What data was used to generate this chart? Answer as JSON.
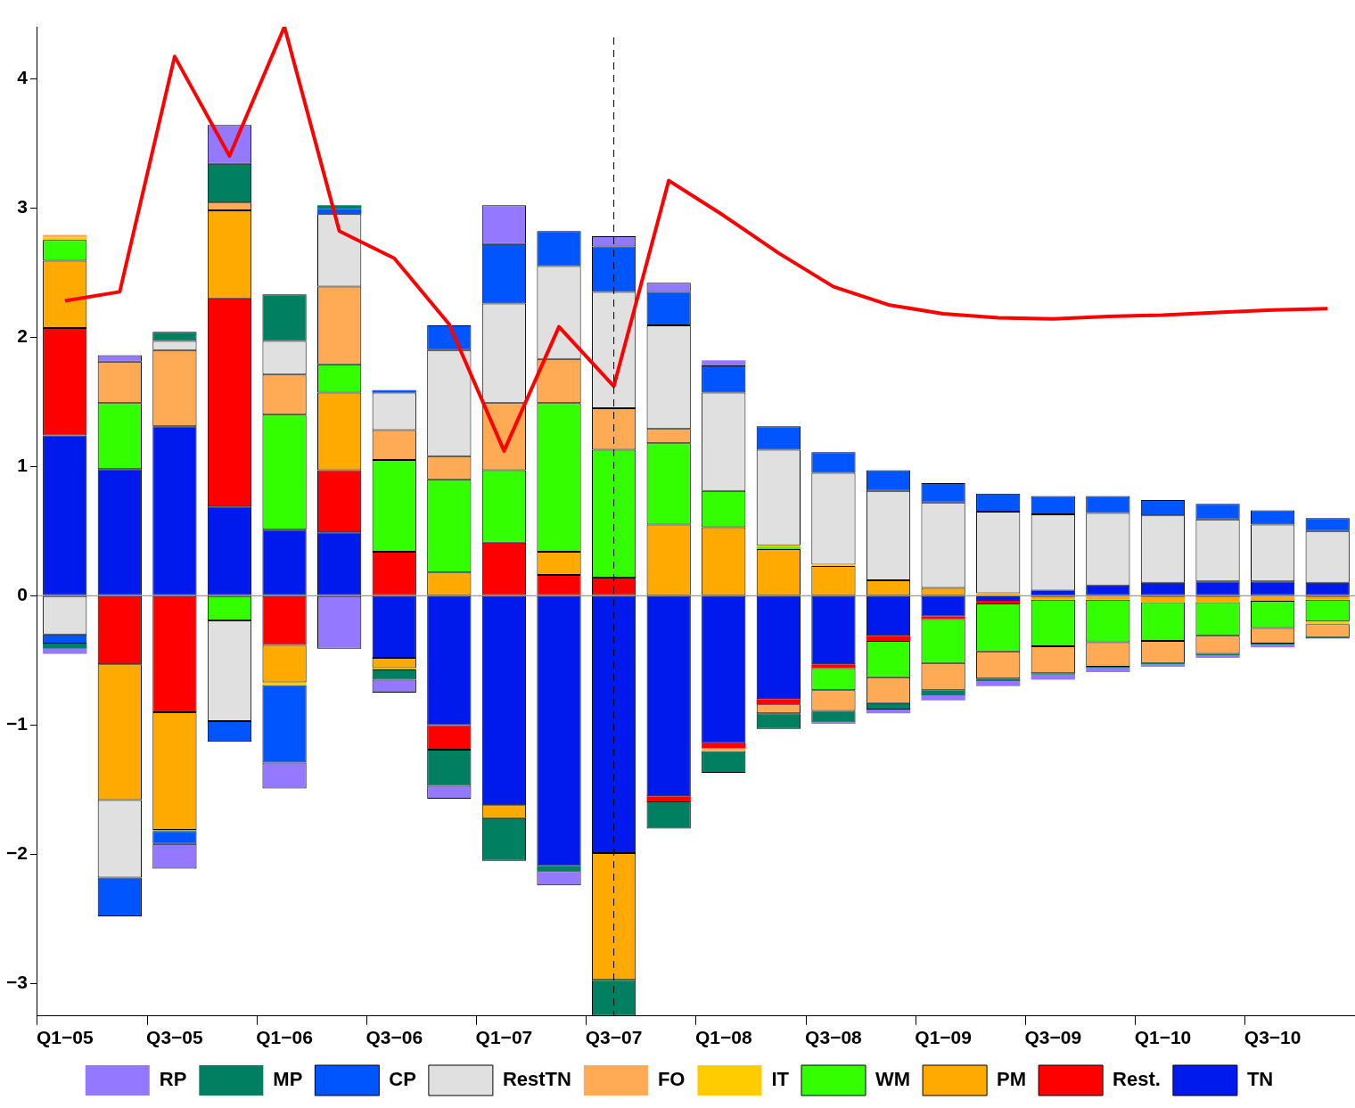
{
  "chart_data": {
    "type": "bar",
    "stacked": true,
    "legend": "bottom",
    "grid": false,
    "categories": [
      "Q1−05",
      null,
      "Q3−05",
      null,
      "Q1−06",
      null,
      "Q3−06",
      null,
      "Q1−07",
      null,
      "Q3−07",
      null,
      "Q1−08",
      null,
      "Q3−08",
      null,
      "Q1−09",
      null,
      "Q3−09",
      null,
      "Q1−10",
      null,
      "Q3−10",
      null
    ],
    "ylim": [
      -3.25,
      4.4
    ],
    "yticks": [
      -3,
      -2,
      -1,
      0,
      1,
      2,
      3,
      4
    ],
    "series": [
      {
        "name": "TN",
        "color": "#001aee",
        "values": [
          1.24,
          0.98,
          1.31,
          0.69,
          0.51,
          0.49,
          -0.48,
          -1.0,
          -1.62,
          -2.09,
          -1.99,
          -1.55,
          -1.14,
          -0.8,
          -0.53,
          -0.31,
          -0.16,
          -0.04,
          0.04,
          0.08,
          0.1,
          0.11,
          0.11,
          0.1
        ]
      },
      {
        "name": "Rest.",
        "color": "#ff0000",
        "values": [
          0.83,
          -0.53,
          -0.9,
          1.61,
          -0.38,
          0.48,
          0.34,
          -0.19,
          0.41,
          0.16,
          0.14,
          -0.04,
          -0.04,
          -0.04,
          -0.03,
          -0.04,
          -0.02,
          -0.02,
          -0.01,
          0,
          -0.01,
          -0.01,
          0,
          -0.01
        ]
      },
      {
        "name": "PM",
        "color": "#ffaa00",
        "values": [
          0.52,
          -1.05,
          -0.91,
          0.68,
          -0.29,
          0.6,
          -0.08,
          0.18,
          -0.1,
          0.18,
          -0.98,
          0.55,
          0.53,
          0.36,
          0.23,
          0.12,
          0.06,
          0.02,
          -0.02,
          -0.03,
          -0.04,
          -0.04,
          -0.04,
          -0.02
        ]
      },
      {
        "name": "WM",
        "color": "#33ff00",
        "values": [
          0.16,
          0.51,
          -0.01,
          -0.19,
          0.89,
          0.22,
          0.71,
          0.72,
          0.56,
          1.15,
          0.99,
          0.63,
          0.28,
          0.02,
          -0.17,
          -0.28,
          -0.34,
          -0.37,
          -0.36,
          -0.33,
          -0.3,
          -0.26,
          -0.21,
          -0.17
        ]
      },
      {
        "name": "IT",
        "color": "#ffcc00",
        "values": [
          0.02,
          0,
          0,
          0,
          -0.02,
          0,
          -0.01,
          0,
          0,
          0,
          0,
          0,
          0,
          0.01,
          0.01,
          0,
          0,
          0,
          0,
          0,
          0,
          0,
          0,
          -0.02
        ]
      },
      {
        "name": "FO",
        "color": "#ffaa55",
        "values": [
          0.02,
          0.32,
          0.59,
          0.06,
          0.31,
          0.6,
          0.23,
          0.18,
          0.52,
          0.34,
          0.32,
          0.11,
          -0.02,
          -0.07,
          -0.16,
          -0.2,
          -0.21,
          -0.21,
          -0.21,
          -0.19,
          -0.17,
          -0.14,
          -0.12,
          -0.1
        ]
      },
      {
        "name": "RestTN",
        "color": "#e0e0e0",
        "values": [
          -0.3,
          -0.6,
          0.07,
          -0.78,
          0.26,
          0.56,
          0.29,
          0.82,
          0.77,
          0.72,
          0.9,
          0.8,
          0.76,
          0.74,
          0.71,
          0.69,
          0.66,
          0.63,
          0.59,
          0.56,
          0.52,
          0.48,
          0.44,
          0.4
        ]
      },
      {
        "name": "CP",
        "color": "#0055ff",
        "values": [
          -0.07,
          -0.3,
          -0.1,
          -0.16,
          -0.6,
          0.04,
          0.02,
          0.19,
          0.46,
          0.27,
          0.35,
          0.26,
          0.21,
          0.18,
          0.16,
          0.16,
          0.15,
          0.14,
          0.14,
          0.13,
          0.12,
          0.12,
          0.11,
          0.1
        ]
      },
      {
        "name": "MP",
        "color": "#008060",
        "values": [
          -0.04,
          0,
          0.07,
          0.3,
          0.36,
          0.03,
          -0.08,
          -0.28,
          -0.33,
          -0.04,
          -0.28,
          -0.21,
          -0.17,
          -0.12,
          -0.09,
          -0.05,
          -0.04,
          -0.02,
          -0.01,
          -0.01,
          -0.01,
          -0.01,
          -0.01,
          -0.01
        ]
      },
      {
        "name": "RP",
        "color": "#9478ff",
        "values": [
          -0.04,
          0.05,
          -0.19,
          0.3,
          -0.2,
          -0.41,
          -0.1,
          -0.1,
          0.3,
          -0.11,
          0.08,
          0.07,
          0.04,
          0,
          -0.01,
          -0.03,
          -0.04,
          -0.04,
          -0.04,
          -0.03,
          -0.02,
          -0.02,
          -0.02,
          0
        ]
      },
      {
        "type": "line",
        "color": "#ff0000",
        "values": [
          2.28,
          2.35,
          4.17,
          3.4,
          4.4,
          2.82,
          2.61,
          2.1,
          1.12,
          2.08,
          1.62,
          3.21,
          2.94,
          2.65,
          2.39,
          2.25,
          2.18,
          2.15,
          2.14,
          2.16,
          2.17,
          2.19,
          2.21,
          2.22
        ]
      }
    ],
    "ref_lines": [
      {
        "axis": "y",
        "value": 0,
        "color": "#808080",
        "line_style": "solid"
      },
      {
        "axis": "x",
        "value": "Q3−07",
        "color": "#000000",
        "line_style": "dashed"
      }
    ]
  }
}
